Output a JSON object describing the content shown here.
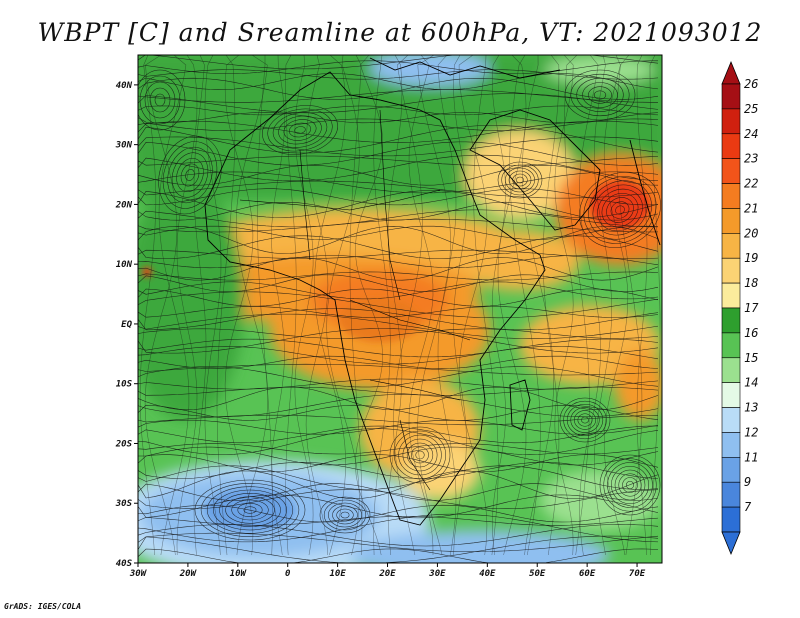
{
  "title": "WBPT [C] and Sreamline at 600hPa, VT: 2021093012",
  "credit": "GrADS: IGES/COLA",
  "map": {
    "lon_range": [
      -30,
      75
    ],
    "lat_range": [
      -40,
      45
    ],
    "lon_ticks": [
      {
        "value": -30,
        "label": "30W"
      },
      {
        "value": -20,
        "label": "20W"
      },
      {
        "value": -10,
        "label": "10W"
      },
      {
        "value": 0,
        "label": "0"
      },
      {
        "value": 10,
        "label": "10E"
      },
      {
        "value": 20,
        "label": "20E"
      },
      {
        "value": 30,
        "label": "30E"
      },
      {
        "value": 40,
        "label": "40E"
      },
      {
        "value": 50,
        "label": "50E"
      },
      {
        "value": 60,
        "label": "60E"
      },
      {
        "value": 70,
        "label": "70E"
      }
    ],
    "lat_ticks": [
      {
        "value": 40,
        "label": "40N"
      },
      {
        "value": 30,
        "label": "30N"
      },
      {
        "value": 20,
        "label": "20N"
      },
      {
        "value": 10,
        "label": "10N"
      },
      {
        "value": 0,
        "label": "EQ"
      },
      {
        "value": -10,
        "label": "10S"
      },
      {
        "value": -20,
        "label": "20S"
      },
      {
        "value": -30,
        "label": "30S"
      },
      {
        "value": -40,
        "label": "40S"
      }
    ]
  },
  "colorbar": {
    "orientation": "vertical",
    "placement": "right",
    "levels": [
      {
        "label": "26",
        "color": "#a50f15"
      },
      {
        "label": "25",
        "color": "#d0200f"
      },
      {
        "label": "24",
        "color": "#ea3a12"
      },
      {
        "label": "23",
        "color": "#f2541a"
      },
      {
        "label": "22",
        "color": "#f47c20"
      },
      {
        "label": "21",
        "color": "#f49a2a"
      },
      {
        "label": "20",
        "color": "#f7b445"
      },
      {
        "label": "19",
        "color": "#fbd374"
      },
      {
        "label": "18",
        "color": "#fbec9c"
      },
      {
        "label": "17",
        "color": "#2e9f2e"
      },
      {
        "label": "16",
        "color": "#58c354"
      },
      {
        "label": "15",
        "color": "#9be08f"
      },
      {
        "label": "14",
        "color": "#e4fae6"
      },
      {
        "label": "13",
        "color": "#b9dcf7"
      },
      {
        "label": "12",
        "color": "#8fbff0"
      },
      {
        "label": "11",
        "color": "#6aa2e6"
      },
      {
        "label": "9",
        "color": "#4a86dc"
      },
      {
        "label": "7",
        "color": "#2c6fd6"
      }
    ],
    "low_end_color": "#2c6fd6"
  },
  "fields": {
    "regions": [
      {
        "name": "warm-core-arabian-sea",
        "level": "23",
        "lon": 64,
        "lat": 21,
        "rx": 9,
        "ry": 7
      },
      {
        "name": "warm-africa-tropics",
        "level": "21",
        "lon": 20,
        "lat": 3,
        "rx": 20,
        "ry": 10
      },
      {
        "name": "cool-south-atlantic",
        "level": "12",
        "lon": -8,
        "lat": -30,
        "rx": 18,
        "ry": 8
      }
    ]
  }
}
